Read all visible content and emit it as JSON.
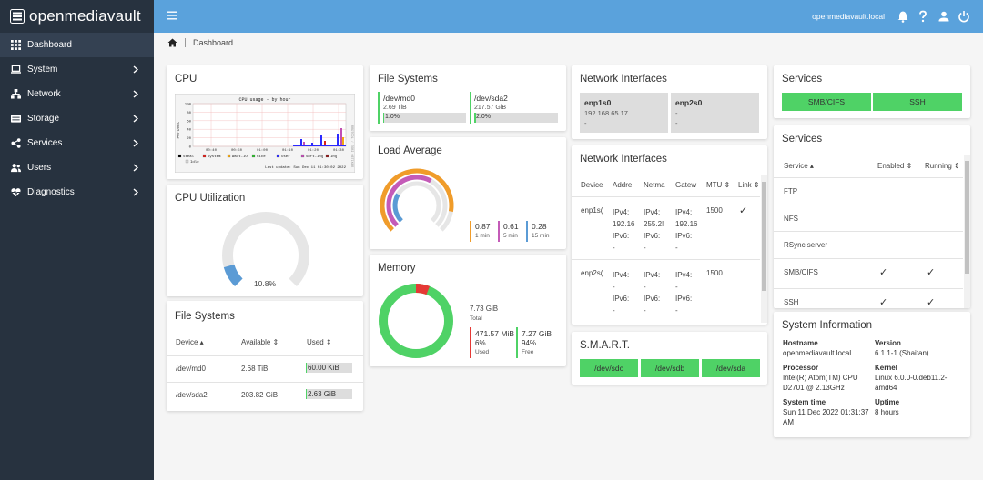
{
  "app": {
    "name": "openmediavault"
  },
  "topbar": {
    "hostname": "openmediavault.local",
    "icons": [
      "menu-icon",
      "bell-icon",
      "help-icon",
      "user-icon",
      "power-icon"
    ]
  },
  "sidebar": {
    "items": [
      {
        "label": "Dashboard",
        "icon": "dashboard-icon"
      },
      {
        "label": "System",
        "icon": "laptop-icon"
      },
      {
        "label": "Network",
        "icon": "network-icon"
      },
      {
        "label": "Storage",
        "icon": "storage-icon"
      },
      {
        "label": "Services",
        "icon": "share-icon"
      },
      {
        "label": "Users",
        "icon": "users-icon"
      },
      {
        "label": "Diagnostics",
        "icon": "heart-pulse-icon"
      }
    ]
  },
  "breadcrumb": {
    "label": "Dashboard"
  },
  "cpu": {
    "title": "CPU",
    "graph_title": "CPU usage - by hour",
    "ylabel": "Percent",
    "yticks": [
      "100",
      "80",
      "60",
      "40",
      "20",
      "0"
    ],
    "xticks": [
      "00:40",
      "00:50",
      "01:00",
      "01:10",
      "01:20",
      "01:30"
    ],
    "legend": [
      "Steal",
      "System",
      "Wait-IO",
      "Nice",
      "User",
      "Soft-IRQ",
      "IRQ",
      "Idle"
    ],
    "legend_colors": [
      "#000000",
      "#d9211b",
      "#f3a712",
      "#2eb82e",
      "#2a2aff",
      "#c04fb5",
      "#8b1a1a",
      "#dddddd"
    ],
    "last_update": "Last update: Sun Dec 11 01:30:02 2022"
  },
  "cpu_util": {
    "title": "CPU Utilization",
    "value": "10.8%",
    "fraction": 0.108
  },
  "fs_table": {
    "title": "File Systems",
    "headers": [
      "Device",
      "Available",
      "Used"
    ],
    "rows": [
      {
        "device": "/dev/md0",
        "available": "2.68 TiB",
        "used": "60.00 KiB",
        "used_fraction": 0.01
      },
      {
        "device": "/dev/sda2",
        "available": "203.82 GiB",
        "used": "2.63 GiB",
        "used_fraction": 0.02
      }
    ]
  },
  "fs_small": {
    "title": "File Systems",
    "items": [
      {
        "device": "/dev/md0",
        "size": "2.69 TiB",
        "percent": "1.0%",
        "fraction": 0.01
      },
      {
        "device": "/dev/sda2",
        "size": "217.57 GiB",
        "percent": "2.0%",
        "fraction": 0.02
      }
    ]
  },
  "load": {
    "title": "Load Average",
    "items": [
      {
        "value": "0.87",
        "label": "1 min",
        "color": "#f09c2a"
      },
      {
        "value": "0.61",
        "label": "5 min",
        "color": "#c45bb8"
      },
      {
        "value": "0.28",
        "label": "15 min",
        "color": "#5b9bd5"
      }
    ]
  },
  "memory": {
    "title": "Memory",
    "total": "7.73 GiB",
    "total_label": "Total",
    "used": "471.57 MiB",
    "used_pct": "6%",
    "used_label": "Used",
    "free": "7.27 GiB",
    "free_pct": "94%",
    "free_label": "Free",
    "used_fraction": 0.06
  },
  "net_small": {
    "title": "Network Interfaces",
    "items": [
      {
        "name": "enp1s0",
        "addr": "192.168.65.17",
        "extra": "-"
      },
      {
        "name": "enp2s0",
        "addr": "-",
        "extra": "-"
      }
    ]
  },
  "net_table": {
    "title": "Network Interfaces",
    "headers": [
      "Device",
      "Addre",
      "Netma",
      "Gatew",
      "MTU",
      "Link"
    ],
    "rows": [
      {
        "device": "enp1s(",
        "addr1": "IPv4:",
        "addr2": "192.16",
        "addr3": "IPv6:",
        "addr4": "-",
        "mask1": "IPv4:",
        "mask2": "255.2!",
        "mask3": "IPv6:",
        "mask4": "-",
        "gw1": "IPv4:",
        "gw2": "192.16",
        "gw3": "IPv6:",
        "gw4": "-",
        "mtu": "1500",
        "link": "✓"
      },
      {
        "device": "enp2s(",
        "addr1": "IPv4:",
        "addr2": "-",
        "addr3": "IPv6:",
        "addr4": "-",
        "mask1": "IPv4:",
        "mask2": "-",
        "mask3": "IPv6:",
        "mask4": "-",
        "gw1": "IPv4:",
        "gw2": "-",
        "gw3": "IPv6:",
        "gw4": "-",
        "mtu": "1500",
        "link": ""
      }
    ]
  },
  "smart": {
    "title": "S.M.A.R.T.",
    "devices": [
      "/dev/sdc",
      "/dev/sdb",
      "/dev/sda"
    ]
  },
  "services_small": {
    "title": "Services",
    "items": [
      "SMB/CIFS",
      "SSH"
    ]
  },
  "services_table": {
    "title": "Services",
    "headers": [
      "Service",
      "Enabled",
      "Running"
    ],
    "rows": [
      {
        "name": "FTP",
        "enabled": "",
        "running": ""
      },
      {
        "name": "NFS",
        "enabled": "",
        "running": ""
      },
      {
        "name": "RSync server",
        "enabled": "",
        "running": ""
      },
      {
        "name": "SMB/CIFS",
        "enabled": "✓",
        "running": "✓"
      },
      {
        "name": "SSH",
        "enabled": "✓",
        "running": "✓"
      }
    ]
  },
  "sysinfo": {
    "title": "System Information",
    "hostname_label": "Hostname",
    "hostname": "openmediavault.local",
    "version_label": "Version",
    "version": "6.1.1-1 (Shaitan)",
    "processor_label": "Processor",
    "processor1": "Intel(R) Atom(TM) CPU",
    "processor2": "D2701 @ 2.13GHz",
    "kernel_label": "Kernel",
    "kernel1": "Linux 6.0.0-0.deb11.2-",
    "kernel2": "amd64",
    "time_label": "System time",
    "time1": "Sun 11 Dec 2022 01:31:37",
    "time2": "AM",
    "uptime_label": "Uptime",
    "uptime": "8 hours"
  },
  "colors": {
    "topbar": "#5aa2dc",
    "sidebar": "#27323f",
    "green": "#4fd266",
    "cpu_arc": "#5b9bd5",
    "mem_used": "#e53935"
  }
}
